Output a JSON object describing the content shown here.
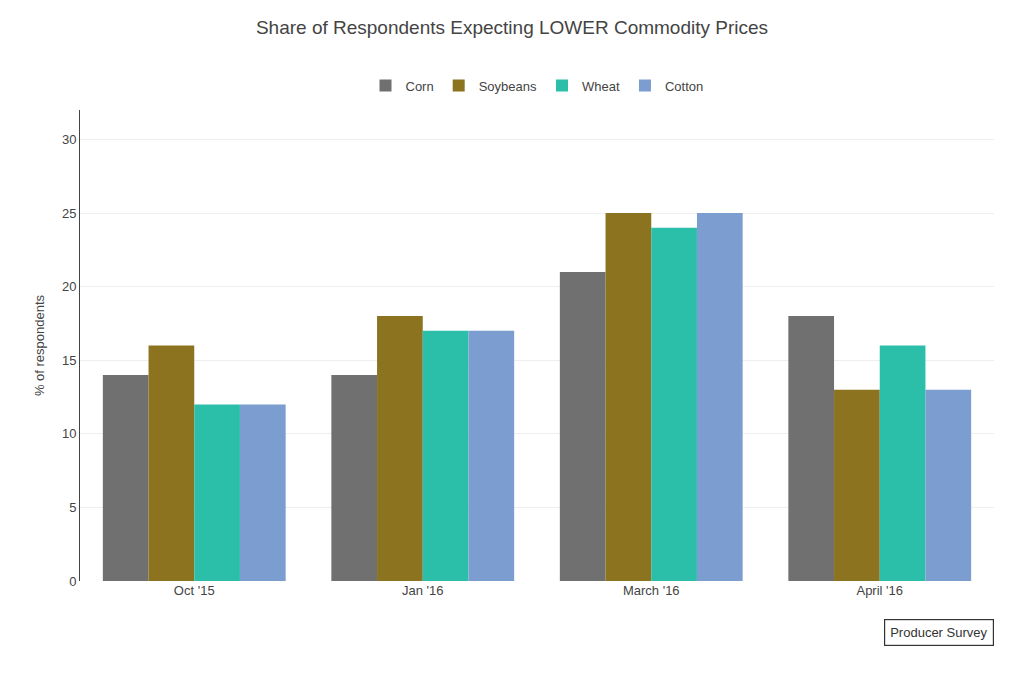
{
  "chart_data": {
    "type": "bar",
    "title": "Share of Respondents Expecting LOWER Commodity Prices",
    "ylabel": "% of respondents",
    "categories": [
      "Oct '15",
      "Jan '16",
      "March '16",
      "April '16"
    ],
    "series": [
      {
        "name": "Corn",
        "color": "#717070",
        "values": [
          14,
          14,
          21,
          18
        ]
      },
      {
        "name": "Soybeans",
        "color": "#8B7320",
        "values": [
          16,
          18,
          25,
          13
        ]
      },
      {
        "name": "Wheat",
        "color": "#2BBFAA",
        "values": [
          12,
          17,
          24,
          16
        ]
      },
      {
        "name": "Cotton",
        "color": "#7B9DD0",
        "values": [
          12,
          17,
          25,
          13
        ]
      }
    ],
    "ylim": [
      0,
      32
    ],
    "yticks": [
      0,
      5,
      10,
      15,
      20,
      25,
      30
    ],
    "grid": true,
    "legend": "top",
    "annotation": "Producer Survey"
  }
}
